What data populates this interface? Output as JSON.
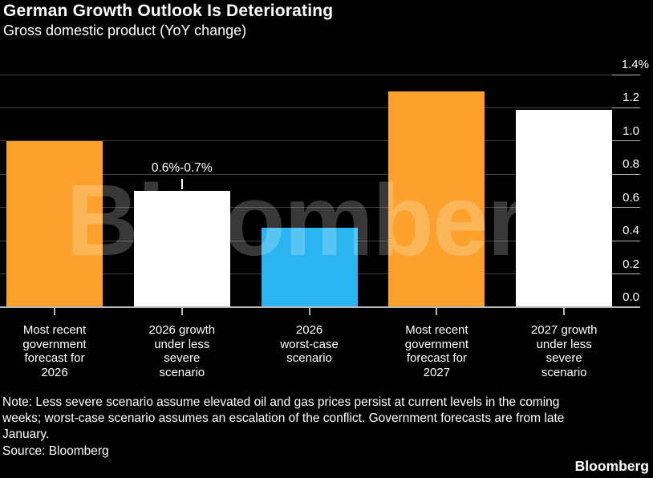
{
  "chart_data": {
    "type": "bar",
    "title": "German Growth Outlook Is Deteriorating",
    "subtitle": "Gross domestic product (YoY change)",
    "xlabel": "",
    "ylabel": "",
    "unit": "%",
    "categories": [
      "Most recent\ngovernment\nforecast for\n2026",
      "2026 growth\nunder less\nsevere\nscenario",
      "2026\nworst-case\nscenario",
      "Most recent\ngovernment\nforecast for\n2027",
      "2027 growth\nunder less\nsevere\nscenario"
    ],
    "values": [
      1.0,
      0.7,
      0.48,
      1.3,
      1.19
    ],
    "bar_colors": [
      "#FCA22C",
      "#FFFFFF",
      "#2BB5F0",
      "#FCA22C",
      "#FFFFFF"
    ],
    "ylim": [
      0,
      1.4
    ],
    "yticks": [
      {
        "value": 0.0,
        "label": "0.0"
      },
      {
        "value": 0.2,
        "label": "0.2"
      },
      {
        "value": 0.4,
        "label": "0.4"
      },
      {
        "value": 0.6,
        "label": "0.6"
      },
      {
        "value": 0.8,
        "label": "0.8"
      },
      {
        "value": 1.0,
        "label": "1.0"
      },
      {
        "value": 1.2,
        "label": "1.2"
      },
      {
        "value": 1.4,
        "label": "1.4%"
      }
    ],
    "axis_side": "right",
    "grid": true,
    "legend": false,
    "annotation": {
      "text": "0.6%-0.7%",
      "bar_index": 1
    }
  },
  "watermark": "Bloomberg",
  "note": "Note: Less severe scenario assume elevated oil and gas prices persist at current levels in the coming\nweeks; worst-case scenario assumes an escalation of the conflict. Government forecasts are from late\nJanuary.",
  "source": "Source: Bloomberg",
  "brand_logo": "Bloomberg",
  "colors": {
    "background": "#000000",
    "text": "#FFFFFF",
    "gridline": "#3E3E3E",
    "axis": "#B8B8B8",
    "bar_orange": "#FCA22C",
    "bar_white": "#FFFFFF",
    "bar_blue": "#2BB5F0"
  }
}
